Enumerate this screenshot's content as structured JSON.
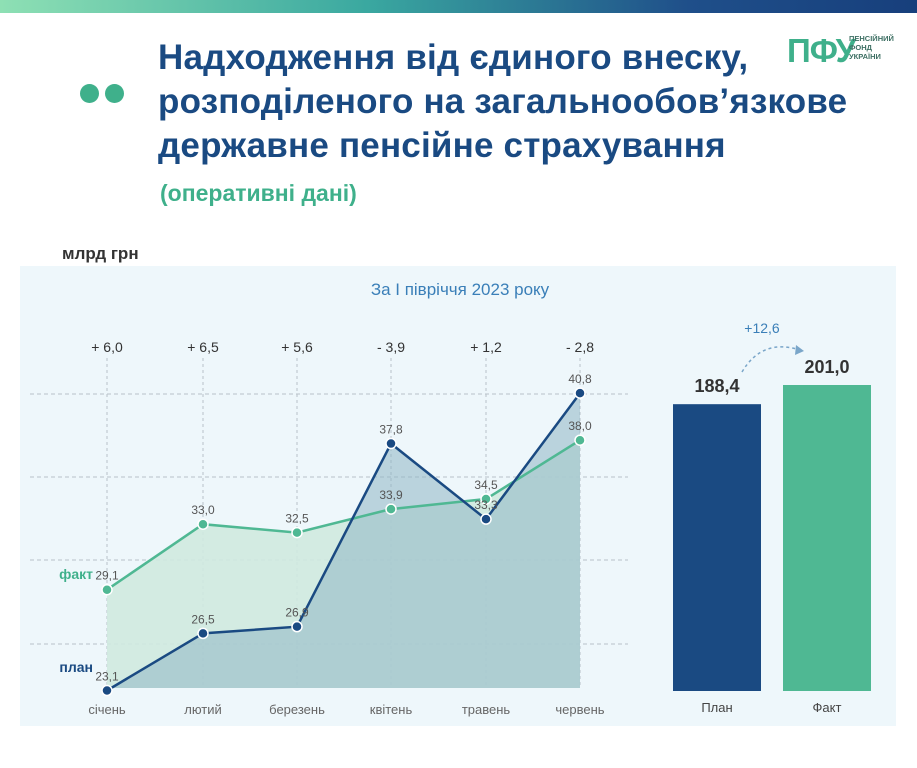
{
  "header": {
    "title_lines": [
      "Надходження від єдиного внеску,",
      "розподіленого на загальнообов’язкове",
      "державне пенсійне страхування"
    ],
    "subtitle": "(оперативні дані)",
    "logo_mark": "ПФУ",
    "logo_text": [
      "ПЕНСІЙНИЙ",
      "ФОНД",
      "УКРАЇНИ"
    ]
  },
  "unit_label": "млрд грн",
  "colors": {
    "plan": "#1a4a82",
    "fact": "#4fb893",
    "title": "#1a4a82",
    "accent": "#3fb08b",
    "panel": "#eef7fb"
  },
  "chart_data": [
    {
      "type": "line",
      "title": "За І півріччя 2023 року",
      "categories": [
        "січень",
        "лютий",
        "березень",
        "квітень",
        "травень",
        "червень"
      ],
      "series": [
        {
          "name": "план",
          "values": [
            23.1,
            26.5,
            26.9,
            37.8,
            33.3,
            40.8
          ],
          "labels": [
            "23,1",
            "26,5",
            "26,9",
            "37,8",
            "33,3",
            "40,8"
          ]
        },
        {
          "name": "факт",
          "values": [
            29.1,
            33.0,
            32.5,
            33.9,
            34.5,
            38.0
          ],
          "labels": [
            "29,1",
            "33,0",
            "32,5",
            "33,9",
            "34,5",
            "38,0"
          ]
        }
      ],
      "differences": [
        "+ 6,0",
        "+ 6,5",
        "+ 5,6",
        "- 3,9",
        "+ 1,2",
        "- 2,8"
      ],
      "ylim": [
        22,
        42
      ],
      "grid": true
    },
    {
      "type": "bar",
      "categories": [
        "План",
        "Факт"
      ],
      "values": [
        188.4,
        201.0
      ],
      "labels": [
        "188,4",
        "201,0"
      ],
      "difference": "+12,6"
    }
  ]
}
